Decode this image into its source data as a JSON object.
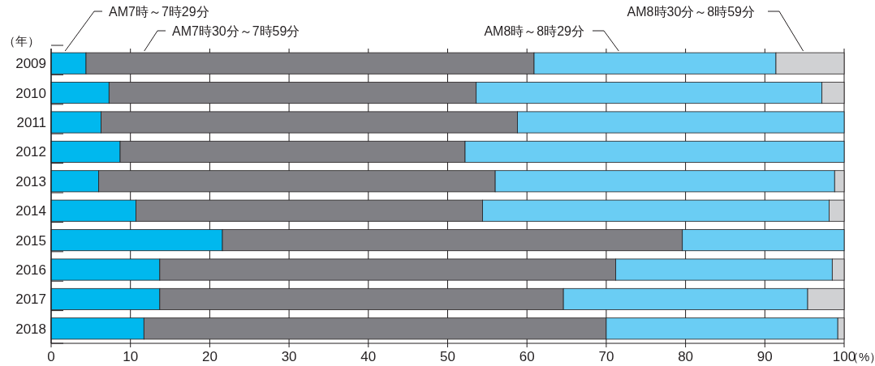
{
  "chart_data": {
    "type": "bar",
    "orientation": "horizontal",
    "stacked": true,
    "ylabel": "（年）",
    "xlabel": "（%）",
    "categories": [
      "2009",
      "2010",
      "2011",
      "2012",
      "2013",
      "2014",
      "2015",
      "2016",
      "2017",
      "2018"
    ],
    "series": [
      {
        "name": "AM7時～7時29分",
        "color": "#00b8ee",
        "values": [
          4.4,
          7.3,
          6.3,
          8.7,
          6.0,
          10.7,
          21.6,
          13.7,
          13.7,
          11.7
        ]
      },
      {
        "name": "AM7時30分～7時59分",
        "color": "#808085",
        "values": [
          56.5,
          46.3,
          52.5,
          43.5,
          50.0,
          43.7,
          58.0,
          57.5,
          50.9,
          58.3
        ]
      },
      {
        "name": "AM8時～8時29分",
        "color": "#6acdf4",
        "values": [
          30.5,
          43.6,
          41.2,
          47.8,
          42.8,
          43.7,
          20.4,
          27.3,
          30.8,
          29.2
        ]
      },
      {
        "name": "AM8時30分～8時59分",
        "color": "#d0d1d3",
        "values": [
          8.6,
          2.8,
          0,
          0,
          1.2,
          1.9,
          0,
          1.5,
          4.6,
          0.8
        ]
      }
    ],
    "xlim": [
      0,
      100
    ],
    "xticks": [
      0,
      10,
      20,
      30,
      40,
      50,
      60,
      70,
      80,
      90,
      100
    ],
    "grid": "x"
  }
}
